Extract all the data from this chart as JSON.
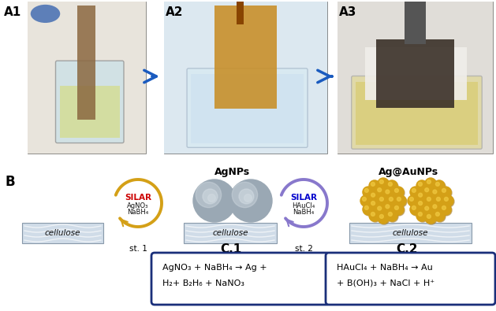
{
  "fig_width": 6.29,
  "fig_height": 3.95,
  "dpi": 100,
  "bg_color": "#ffffff",
  "label_A1": "A1",
  "label_A2": "A2",
  "label_A3": "A3",
  "label_B": "B",
  "arrow_color": "#1a5bbf",
  "silar1_text_top": "SILAR",
  "silar1_text_mid": "AgNO₃",
  "silar1_text_bot": "NaBH₄",
  "silar2_text_top": "SILAR",
  "silar2_text_mid": "HAuCl₄",
  "silar2_text_bot": "NaBH₄",
  "silar1_color_text": "#cc0000",
  "silar2_color_text": "#0000cc",
  "agNPs_label": "AgNPs",
  "agAuNPs_label": "Ag@AuNPs",
  "cellulose_color_light": "#d0dce8",
  "cellulose_color_dark": "#a8bece",
  "st1_label": "st. 1",
  "st2_label": "st. 2",
  "c1_label": "C.1",
  "c2_label": "C.2",
  "c1_eq1": "AgNO₃ + NaBH₄ → Ag +",
  "c1_eq2": "H₂+ B₂H₆ + NaNO₃",
  "c2_eq1": "HAuCl₄ + NaBH₄ → Au",
  "c2_eq2": "+ B(OH)₃ + NaCl + H⁺",
  "box_color": "#1a2f7a",
  "silar1_arrow_color": "#d4a017",
  "silar2_arrow_color": "#8878cc",
  "ag_sphere_color": "#9aa8b4",
  "ag_sphere_highlight": "#d4dde4",
  "au_color": "#d4a017",
  "au_highlight": "#f0c840"
}
